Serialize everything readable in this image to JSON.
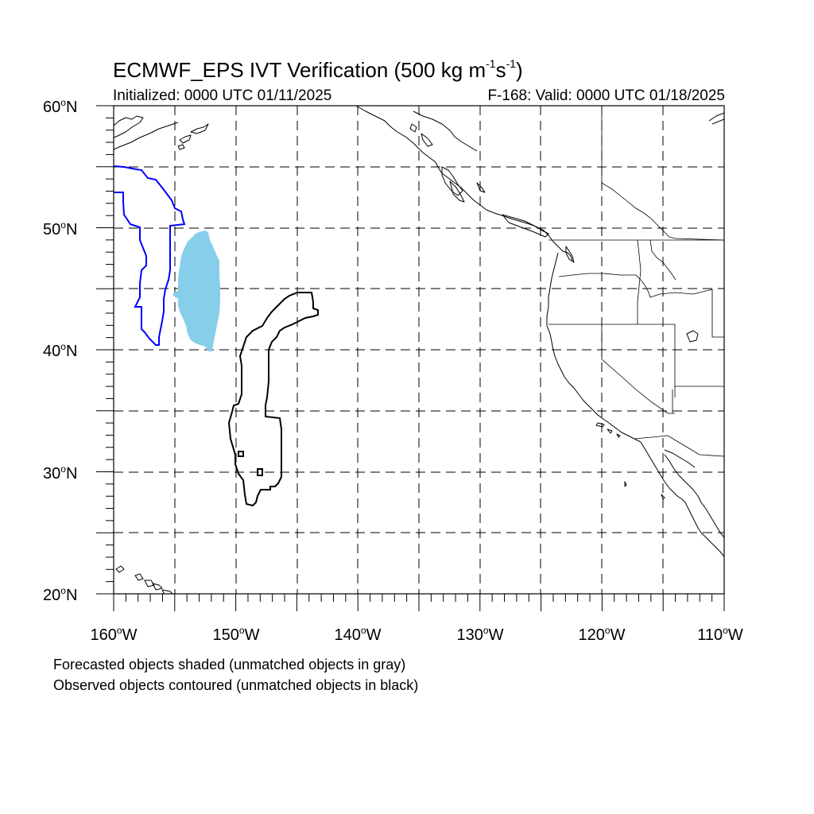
{
  "title": {
    "main": "ECMWF_EPS IVT Verification (500 kg m",
    "exp1": "-1",
    "mid": "s",
    "exp2": "-1",
    "end": ")"
  },
  "subtitle_left": "Initialized: 0000 UTC 01/11/2025",
  "subtitle_right": "F-168: Valid: 0000 UTC 01/18/2025",
  "degree_symbol": "o",
  "lat_labels": [
    {
      "num": "60",
      "hemi": "N"
    },
    {
      "num": "50",
      "hemi": "N"
    },
    {
      "num": "40",
      "hemi": "N"
    },
    {
      "num": "30",
      "hemi": "N"
    },
    {
      "num": "20",
      "hemi": "N"
    }
  ],
  "lon_labels": [
    {
      "num": "160",
      "hemi": "W"
    },
    {
      "num": "150",
      "hemi": "W"
    },
    {
      "num": "140",
      "hemi": "W"
    },
    {
      "num": "130",
      "hemi": "W"
    },
    {
      "num": "120",
      "hemi": "W"
    },
    {
      "num": "110",
      "hemi": "W"
    }
  ],
  "map_extent": {
    "lon": [
      -160,
      -110
    ],
    "lat": [
      20,
      60
    ]
  },
  "grid": {
    "dashed": true,
    "lon_step": 5,
    "lat_step": 5
  },
  "colors": {
    "forecast_matched": "#87ceeb",
    "observed_matched": "#0000ff",
    "observed_unmatched": "#000000",
    "coastline": "#000000"
  },
  "footnotes": [
    "Forecasted objects shaded (unmatched objects in gray)",
    "Observed objects contoured (unmatched objects in black)"
  ]
}
